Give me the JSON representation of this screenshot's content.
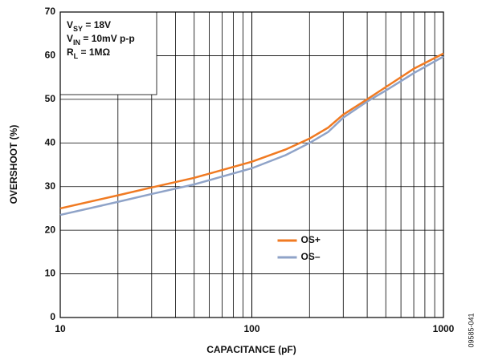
{
  "chart_data": {
    "type": "line",
    "xlabel": "CAPACITANCE (pF)",
    "ylabel": "OVERSHOOT (%)",
    "x": [
      10,
      20,
      30,
      50,
      70,
      100,
      150,
      200,
      250,
      300,
      400,
      500,
      700,
      1000
    ],
    "series": [
      {
        "name": "OS+",
        "color": "#f07a22",
        "values": [
          25,
          28,
          29.8,
          32,
          33.8,
          35.7,
          38.5,
          41,
          43.5,
          46.5,
          50,
          52.8,
          57,
          60.5
        ]
      },
      {
        "name": "OS–",
        "color": "#8fa3c8",
        "values": [
          23.5,
          26.5,
          28.3,
          30.5,
          32.3,
          34.2,
          37.2,
          40,
          42.5,
          45.8,
          49.5,
          52,
          56,
          59.8
        ]
      }
    ],
    "xlog": true,
    "xlim": [
      10,
      1000
    ],
    "xticks": [
      10,
      100,
      1000
    ],
    "xminorticks": [
      20,
      30,
      40,
      50,
      60,
      70,
      80,
      90,
      200,
      300,
      400,
      500,
      600,
      700,
      800,
      900
    ],
    "ylim": [
      0,
      70
    ],
    "yticks": [
      0,
      10,
      20,
      30,
      40,
      50,
      60,
      70
    ],
    "grid": true,
    "legend": "lower center",
    "annotation": [
      {
        "main": "V",
        "sub": "SY",
        "rest": " = 18V"
      },
      {
        "main": "V",
        "sub": "IN",
        "rest": " = 10mV p-p"
      },
      {
        "main": "R",
        "sub": "L",
        "rest": " = 1MΩ"
      }
    ],
    "figure_id": "09585-041"
  }
}
